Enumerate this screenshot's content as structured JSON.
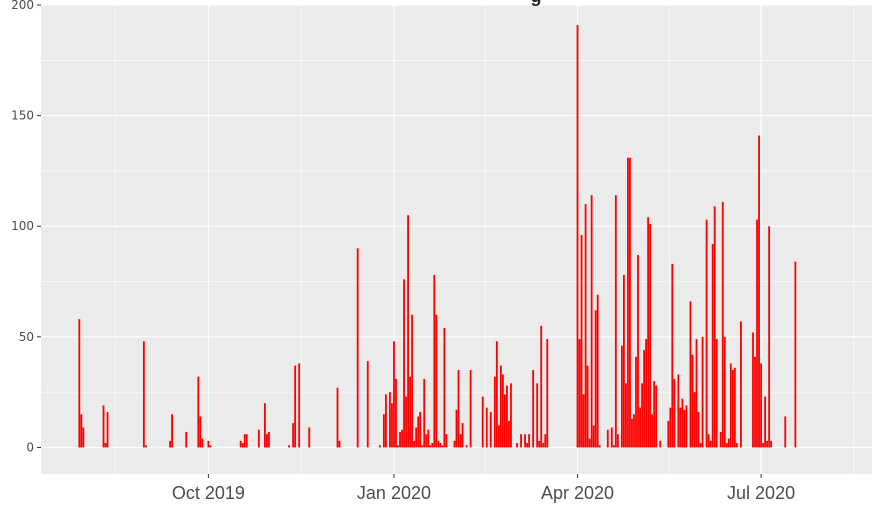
{
  "chart_data": {
    "type": "bar",
    "title": "g",
    "xlabel": "",
    "ylabel": "",
    "x_axis": {
      "kind": "date",
      "range": [
        "2019-07-10",
        "2020-08-25"
      ],
      "ticks": [
        {
          "date": "2019-10-01",
          "label": "Oct 2019"
        },
        {
          "date": "2020-01-01",
          "label": "Jan 2020"
        },
        {
          "date": "2020-04-01",
          "label": "Apr 2020"
        },
        {
          "date": "2020-07-01",
          "label": "Jul 2020"
        }
      ]
    },
    "y_axis": {
      "range": [
        -12,
        200
      ],
      "ticks": [
        {
          "value": 0,
          "label": "0"
        },
        {
          "value": 50,
          "label": "50"
        },
        {
          "value": 100,
          "label": "100"
        },
        {
          "value": 150,
          "label": "150"
        },
        {
          "value": 200,
          "label": "200"
        }
      ]
    },
    "grid": true,
    "background": "#ebebeb",
    "grid_color": "#ffffff",
    "bar_color": "#ff0000",
    "series": [
      {
        "points": [
          [
            "2019-07-29",
            58
          ],
          [
            "2019-07-30",
            15
          ],
          [
            "2019-07-31",
            9
          ],
          [
            "2019-08-10",
            19
          ],
          [
            "2019-08-11",
            2
          ],
          [
            "2019-08-12",
            16
          ],
          [
            "2019-08-30",
            48
          ],
          [
            "2019-08-31",
            1
          ],
          [
            "2019-09-12",
            3
          ],
          [
            "2019-09-13",
            15
          ],
          [
            "2019-09-20",
            7
          ],
          [
            "2019-09-26",
            32
          ],
          [
            "2019-09-27",
            14
          ],
          [
            "2019-09-28",
            4
          ],
          [
            "2019-10-01",
            3
          ],
          [
            "2019-10-02",
            1
          ],
          [
            "2019-10-17",
            3
          ],
          [
            "2019-10-18",
            2
          ],
          [
            "2019-10-19",
            6
          ],
          [
            "2019-10-20",
            6
          ],
          [
            "2019-10-26",
            8
          ],
          [
            "2019-10-29",
            20
          ],
          [
            "2019-10-30",
            6
          ],
          [
            "2019-10-31",
            7
          ],
          [
            "2019-11-10",
            1
          ],
          [
            "2019-11-12",
            11
          ],
          [
            "2019-11-13",
            37
          ],
          [
            "2019-11-15",
            38
          ],
          [
            "2019-11-20",
            9
          ],
          [
            "2019-12-04",
            27
          ],
          [
            "2019-12-05",
            3
          ],
          [
            "2019-12-14",
            90
          ],
          [
            "2019-12-19",
            39
          ],
          [
            "2019-12-25",
            1
          ],
          [
            "2019-12-27",
            15
          ],
          [
            "2019-12-28",
            24
          ],
          [
            "2019-12-30",
            25
          ],
          [
            "2019-12-31",
            20
          ],
          [
            "2020-01-01",
            48
          ],
          [
            "2020-01-02",
            31
          ],
          [
            "2020-01-03",
            1
          ],
          [
            "2020-01-04",
            7
          ],
          [
            "2020-01-05",
            8
          ],
          [
            "2020-01-06",
            76
          ],
          [
            "2020-01-07",
            23
          ],
          [
            "2020-01-08",
            105
          ],
          [
            "2020-01-09",
            32
          ],
          [
            "2020-01-10",
            60
          ],
          [
            "2020-01-11",
            3
          ],
          [
            "2020-01-12",
            9
          ],
          [
            "2020-01-13",
            14
          ],
          [
            "2020-01-14",
            16
          ],
          [
            "2020-01-15",
            1
          ],
          [
            "2020-01-16",
            31
          ],
          [
            "2020-01-17",
            6
          ],
          [
            "2020-01-18",
            8
          ],
          [
            "2020-01-19",
            1
          ],
          [
            "2020-01-20",
            2
          ],
          [
            "2020-01-21",
            78
          ],
          [
            "2020-01-22",
            60
          ],
          [
            "2020-01-23",
            3
          ],
          [
            "2020-01-24",
            2
          ],
          [
            "2020-01-25",
            1
          ],
          [
            "2020-01-26",
            54
          ],
          [
            "2020-01-27",
            6
          ],
          [
            "2020-01-31",
            3
          ],
          [
            "2020-02-01",
            17
          ],
          [
            "2020-02-02",
            35
          ],
          [
            "2020-02-03",
            6
          ],
          [
            "2020-02-04",
            11
          ],
          [
            "2020-02-06",
            1
          ],
          [
            "2020-02-08",
            35
          ],
          [
            "2020-02-14",
            23
          ],
          [
            "2020-02-16",
            18
          ],
          [
            "2020-02-18",
            16
          ],
          [
            "2020-02-20",
            32
          ],
          [
            "2020-02-21",
            48
          ],
          [
            "2020-02-22",
            10
          ],
          [
            "2020-02-23",
            37
          ],
          [
            "2020-02-24",
            33
          ],
          [
            "2020-02-25",
            24
          ],
          [
            "2020-02-26",
            28
          ],
          [
            "2020-02-27",
            12
          ],
          [
            "2020-02-28",
            29
          ],
          [
            "2020-03-02",
            2
          ],
          [
            "2020-03-04",
            6
          ],
          [
            "2020-03-06",
            6
          ],
          [
            "2020-03-07",
            2
          ],
          [
            "2020-03-08",
            6
          ],
          [
            "2020-03-10",
            35
          ],
          [
            "2020-03-12",
            29
          ],
          [
            "2020-03-13",
            3
          ],
          [
            "2020-03-14",
            55
          ],
          [
            "2020-03-15",
            2
          ],
          [
            "2020-03-16",
            6
          ],
          [
            "2020-03-17",
            49
          ],
          [
            "2020-04-01",
            191
          ],
          [
            "2020-04-02",
            49
          ],
          [
            "2020-04-03",
            96
          ],
          [
            "2020-04-04",
            24
          ],
          [
            "2020-04-05",
            110
          ],
          [
            "2020-04-06",
            37
          ],
          [
            "2020-04-07",
            4
          ],
          [
            "2020-04-08",
            114
          ],
          [
            "2020-04-09",
            10
          ],
          [
            "2020-04-10",
            62
          ],
          [
            "2020-04-11",
            69
          ],
          [
            "2020-04-12",
            1
          ],
          [
            "2020-04-16",
            8
          ],
          [
            "2020-04-18",
            9
          ],
          [
            "2020-04-19",
            1
          ],
          [
            "2020-04-20",
            114
          ],
          [
            "2020-04-21",
            6
          ],
          [
            "2020-04-23",
            46
          ],
          [
            "2020-04-24",
            78
          ],
          [
            "2020-04-25",
            29
          ],
          [
            "2020-04-26",
            131
          ],
          [
            "2020-04-27",
            131
          ],
          [
            "2020-04-28",
            13
          ],
          [
            "2020-04-29",
            15
          ],
          [
            "2020-04-30",
            41
          ],
          [
            "2020-05-01",
            87
          ],
          [
            "2020-05-02",
            18
          ],
          [
            "2020-05-03",
            29
          ],
          [
            "2020-05-04",
            44
          ],
          [
            "2020-05-05",
            49
          ],
          [
            "2020-05-06",
            104
          ],
          [
            "2020-05-07",
            101
          ],
          [
            "2020-05-08",
            15
          ],
          [
            "2020-05-09",
            30
          ],
          [
            "2020-05-10",
            28
          ],
          [
            "2020-05-12",
            3
          ],
          [
            "2020-05-16",
            12
          ],
          [
            "2020-05-17",
            18
          ],
          [
            "2020-05-18",
            83
          ],
          [
            "2020-05-19",
            31
          ],
          [
            "2020-05-21",
            33
          ],
          [
            "2020-05-22",
            18
          ],
          [
            "2020-05-23",
            22
          ],
          [
            "2020-05-24",
            17
          ],
          [
            "2020-05-25",
            19
          ],
          [
            "2020-05-27",
            66
          ],
          [
            "2020-05-28",
            42
          ],
          [
            "2020-05-29",
            25
          ],
          [
            "2020-05-30",
            49
          ],
          [
            "2020-05-31",
            16
          ],
          [
            "2020-06-01",
            2
          ],
          [
            "2020-06-02",
            50
          ],
          [
            "2020-06-04",
            103
          ],
          [
            "2020-06-05",
            6
          ],
          [
            "2020-06-06",
            3
          ],
          [
            "2020-06-07",
            92
          ],
          [
            "2020-06-08",
            109
          ],
          [
            "2020-06-09",
            49
          ],
          [
            "2020-06-11",
            7
          ],
          [
            "2020-06-12",
            111
          ],
          [
            "2020-06-13",
            50
          ],
          [
            "2020-06-14",
            2
          ],
          [
            "2020-06-15",
            4
          ],
          [
            "2020-06-16",
            38
          ],
          [
            "2020-06-17",
            35
          ],
          [
            "2020-06-18",
            36
          ],
          [
            "2020-06-19",
            2
          ],
          [
            "2020-06-21",
            57
          ],
          [
            "2020-06-27",
            52
          ],
          [
            "2020-06-28",
            41
          ],
          [
            "2020-06-29",
            103
          ],
          [
            "2020-06-30",
            141
          ],
          [
            "2020-07-01",
            38
          ],
          [
            "2020-07-02",
            2
          ],
          [
            "2020-07-03",
            23
          ],
          [
            "2020-07-04",
            3
          ],
          [
            "2020-07-05",
            100
          ],
          [
            "2020-07-06",
            3
          ],
          [
            "2020-07-13",
            14
          ],
          [
            "2020-07-18",
            84
          ]
        ]
      }
    ]
  }
}
